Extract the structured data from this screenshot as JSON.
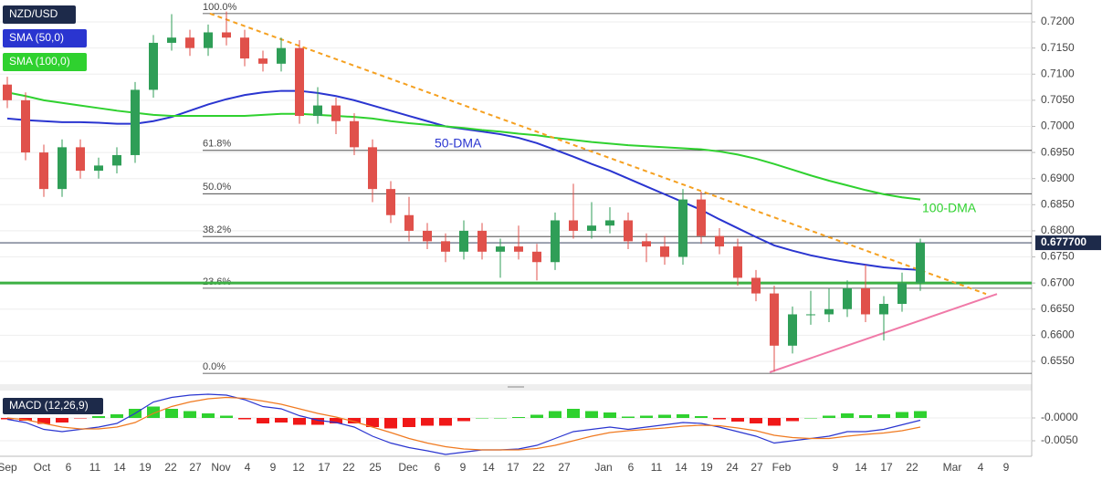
{
  "chart_data": {
    "type": "candlestick",
    "title": "NZD/USD",
    "up_color": "#2f9e57",
    "down_color": "#e0514b",
    "open": [
      0.708,
      0.705,
      0.695,
      0.688,
      0.696,
      0.6915,
      0.6925,
      0.6945,
      0.707,
      0.716,
      0.717,
      0.715,
      0.718,
      0.717,
      0.713,
      0.712,
      0.715,
      0.702,
      0.704,
      0.701,
      0.696,
      0.688,
      0.683,
      0.68,
      0.678,
      0.676,
      0.68,
      0.676,
      0.677,
      0.676,
      0.674,
      0.682,
      0.68,
      0.681,
      0.682,
      0.678,
      0.677,
      0.675,
      0.686,
      0.679,
      0.677,
      0.671,
      0.668,
      0.658,
      0.664,
      0.664,
      0.665,
      0.669,
      0.664,
      0.666,
      0.67
    ],
    "high": [
      0.7095,
      0.7065,
      0.6965,
      0.6975,
      0.6975,
      0.694,
      0.696,
      0.7085,
      0.7175,
      0.7215,
      0.7185,
      0.7195,
      0.722,
      0.7185,
      0.7145,
      0.717,
      0.7165,
      0.7075,
      0.7055,
      0.7025,
      0.6975,
      0.6895,
      0.6865,
      0.6815,
      0.6795,
      0.682,
      0.6815,
      0.6785,
      0.681,
      0.6775,
      0.6835,
      0.689,
      0.6855,
      0.6845,
      0.6835,
      0.6795,
      0.679,
      0.688,
      0.6875,
      0.6805,
      0.6785,
      0.6725,
      0.6695,
      0.6655,
      0.6685,
      0.669,
      0.6705,
      0.6735,
      0.6675,
      0.672,
      0.6785
    ],
    "low": [
      0.7035,
      0.6935,
      0.6865,
      0.6865,
      0.69,
      0.69,
      0.691,
      0.693,
      0.7055,
      0.7145,
      0.7135,
      0.7135,
      0.7155,
      0.7115,
      0.7105,
      0.7105,
      0.7005,
      0.7005,
      0.6985,
      0.6945,
      0.6855,
      0.6815,
      0.678,
      0.6765,
      0.674,
      0.6745,
      0.6745,
      0.671,
      0.6745,
      0.6705,
      0.6725,
      0.6785,
      0.6785,
      0.6795,
      0.6765,
      0.674,
      0.6735,
      0.6735,
      0.6775,
      0.6755,
      0.6695,
      0.6665,
      0.653,
      0.6565,
      0.662,
      0.6625,
      0.6635,
      0.6625,
      0.659,
      0.6645,
      0.6685
    ],
    "close": [
      0.705,
      0.695,
      0.688,
      0.696,
      0.6915,
      0.6925,
      0.6945,
      0.707,
      0.716,
      0.717,
      0.715,
      0.718,
      0.717,
      0.713,
      0.712,
      0.715,
      0.702,
      0.704,
      0.701,
      0.696,
      0.688,
      0.683,
      0.68,
      0.678,
      0.676,
      0.68,
      0.676,
      0.677,
      0.676,
      0.674,
      0.682,
      0.68,
      0.681,
      0.682,
      0.678,
      0.677,
      0.675,
      0.686,
      0.679,
      0.677,
      0.671,
      0.668,
      0.658,
      0.664,
      0.664,
      0.665,
      0.669,
      0.664,
      0.666,
      0.67,
      0.6777
    ],
    "series": [
      {
        "name": "SMA (50,0)",
        "label": "50-DMA",
        "color": "#2a35d0",
        "values": [
          0.7015,
          0.7012,
          0.701,
          0.7008,
          0.7008,
          0.7007,
          0.7005,
          0.7005,
          0.701,
          0.7018,
          0.703,
          0.7042,
          0.7052,
          0.706,
          0.7065,
          0.7068,
          0.7068,
          0.7064,
          0.7058,
          0.705,
          0.704,
          0.703,
          0.702,
          0.701,
          0.7,
          0.6995,
          0.699,
          0.6985,
          0.6978,
          0.6968,
          0.6955,
          0.6942,
          0.6928,
          0.6915,
          0.69,
          0.6885,
          0.687,
          0.6855,
          0.684,
          0.6822,
          0.6805,
          0.6788,
          0.6772,
          0.6762,
          0.6753,
          0.6746,
          0.674,
          0.6735,
          0.673,
          0.6727,
          0.6725
        ]
      },
      {
        "name": "SMA (100,0)",
        "label": "100-DMA",
        "color": "#2fd12f",
        "values": [
          0.7065,
          0.7058,
          0.705,
          0.7045,
          0.704,
          0.7035,
          0.703,
          0.7026,
          0.7022,
          0.702,
          0.702,
          0.702,
          0.702,
          0.702,
          0.7022,
          0.7024,
          0.7024,
          0.7022,
          0.702,
          0.7018,
          0.7015,
          0.701,
          0.7006,
          0.7003,
          0.7,
          0.6997,
          0.6993,
          0.699,
          0.6986,
          0.6983,
          0.6978,
          0.6974,
          0.697,
          0.6967,
          0.6964,
          0.6962,
          0.696,
          0.6958,
          0.6956,
          0.6952,
          0.6946,
          0.6938,
          0.6928,
          0.6917,
          0.6906,
          0.6896,
          0.6887,
          0.6878,
          0.687,
          0.6864,
          0.686
        ]
      }
    ],
    "ylim": [
      0.6508,
      0.7242
    ],
    "yticks": [
      {
        "value": 0.72,
        "label": "0.7200"
      },
      {
        "value": 0.715,
        "label": "0.7150"
      },
      {
        "value": 0.71,
        "label": "0.7100"
      },
      {
        "value": 0.705,
        "label": "0.7050"
      },
      {
        "value": 0.7,
        "label": "0.7000"
      },
      {
        "value": 0.695,
        "label": "0.6950"
      },
      {
        "value": 0.69,
        "label": "0.6900"
      },
      {
        "value": 0.685,
        "label": "0.6850"
      },
      {
        "value": 0.68,
        "label": "0.6800"
      },
      {
        "value": 0.675,
        "label": "0.6750"
      },
      {
        "value": 0.67,
        "label": "0.6700"
      },
      {
        "value": 0.665,
        "label": "0.6650"
      },
      {
        "value": 0.66,
        "label": "0.6600"
      },
      {
        "value": 0.655,
        "label": "0.6550"
      }
    ],
    "grid": true,
    "last_price": {
      "value": 0.6777,
      "label": "0.677700"
    },
    "fibonacci": [
      {
        "level": "100.0%",
        "value": 0.7216
      },
      {
        "level": "61.8%",
        "value": 0.6954
      },
      {
        "level": "50.0%",
        "value": 0.6871
      },
      {
        "level": "38.2%",
        "value": 0.6789
      },
      {
        "level": "23.6%",
        "value": 0.669
      },
      {
        "level": "0.0%",
        "value": 0.6527
      }
    ],
    "support": {
      "value": 0.67,
      "color": "#3cb043"
    },
    "trendlines": [
      {
        "color": "#f5a020",
        "dashed": true,
        "points": [
          [
            11.1,
            0.7216
          ],
          [
            53.6,
            0.6679
          ]
        ]
      },
      {
        "color": "#f07aa8",
        "dashed": false,
        "points": [
          [
            41.75,
            0.6529
          ],
          [
            54.2,
            0.6679
          ]
        ]
      }
    ],
    "x_labels": [
      "Sep",
      "Oct",
      "6",
      "11",
      "14",
      "19",
      "22",
      "27",
      "Nov",
      "4",
      "9",
      "12",
      "17",
      "22",
      "25",
      "Dec",
      "6",
      "9",
      "14",
      "17",
      "22",
      "27",
      "Jan",
      "6",
      "11",
      "14",
      "19",
      "24",
      "27",
      "Feb",
      "9",
      "14",
      "17",
      "22",
      "Mar",
      "4",
      "9"
    ],
    "macd": {
      "title": "MACD (12,26,9)",
      "macd_color": "#2a35d0",
      "signal_color": "#f07a20",
      "up_color": "#2fd12f",
      "down_color": "#f01818",
      "macd": [
        -0.0003,
        -0.001,
        -0.0025,
        -0.003,
        -0.0025,
        -0.002,
        -0.0012,
        0.001,
        0.0035,
        0.0045,
        0.005,
        0.0052,
        0.005,
        0.004,
        0.0025,
        0.002,
        0.0005,
        -0.0005,
        -0.001,
        -0.002,
        -0.004,
        -0.0055,
        -0.0065,
        -0.0072,
        -0.008,
        -0.0075,
        -0.007,
        -0.007,
        -0.0068,
        -0.006,
        -0.0045,
        -0.003,
        -0.0025,
        -0.002,
        -0.0025,
        -0.002,
        -0.0015,
        -0.001,
        -0.0012,
        -0.002,
        -0.003,
        -0.004,
        -0.0055,
        -0.005,
        -0.0045,
        -0.004,
        -0.003,
        -0.003,
        -0.0025,
        -0.0015,
        -0.0005
      ],
      "signal": [
        0.0,
        -0.0004,
        -0.0012,
        -0.002,
        -0.0024,
        -0.0024,
        -0.002,
        -0.001,
        0.001,
        0.0025,
        0.0035,
        0.0042,
        0.0045,
        0.0043,
        0.0037,
        0.003,
        0.002,
        0.001,
        0.0002,
        -0.0008,
        -0.002,
        -0.0032,
        -0.0045,
        -0.0055,
        -0.0063,
        -0.0068,
        -0.007,
        -0.007,
        -0.007,
        -0.0067,
        -0.006,
        -0.005,
        -0.004,
        -0.0032,
        -0.0028,
        -0.0025,
        -0.0022,
        -0.0018,
        -0.0016,
        -0.0017,
        -0.0022,
        -0.0028,
        -0.0038,
        -0.0043,
        -0.0045,
        -0.0045,
        -0.004,
        -0.0036,
        -0.0033,
        -0.0028,
        -0.002
      ],
      "histogram": [
        -0.0003,
        -0.0006,
        -0.0013,
        -0.001,
        -0.0001,
        0.0004,
        0.0008,
        0.002,
        0.0025,
        0.002,
        0.0015,
        0.001,
        0.0005,
        -0.0003,
        -0.0012,
        -0.001,
        -0.0015,
        -0.0015,
        -0.0012,
        -0.0012,
        -0.002,
        -0.0023,
        -0.002,
        -0.0017,
        -0.0017,
        -0.0007,
        0.0,
        0.0,
        0.0002,
        0.0007,
        0.0015,
        0.002,
        0.0015,
        0.0012,
        0.0003,
        0.0005,
        0.0007,
        0.0008,
        0.0004,
        -0.0003,
        -0.0008,
        -0.0012,
        -0.0017,
        -0.0007,
        0.0,
        0.0005,
        0.001,
        0.0006,
        0.0008,
        0.0013,
        0.0015
      ],
      "ylim": [
        -0.0084,
        0.006
      ],
      "yticks": [
        {
          "value": 0,
          "label": "-0.0000"
        },
        {
          "value": -0.005,
          "label": "-0.0050"
        }
      ]
    }
  }
}
